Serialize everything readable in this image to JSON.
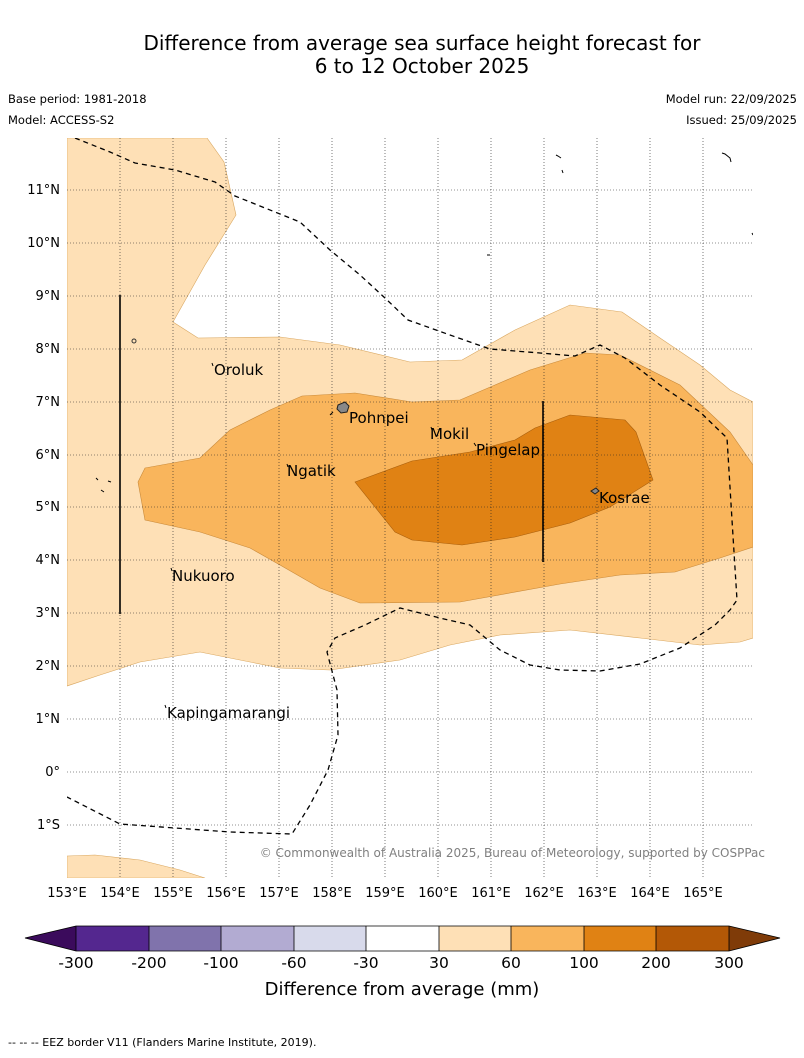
{
  "title": {
    "line1": "Difference from average sea surface height forecast for",
    "line2": "6 to 12 October 2025"
  },
  "meta": {
    "base_period": "Base period: 1981-2018",
    "model": "Model: ACCESS-S2",
    "model_run": "Model run: 22/09/2025",
    "issued": "Issued: 25/09/2025"
  },
  "axes": {
    "lon_labels": [
      "153°E",
      "154°E",
      "155°E",
      "156°E",
      "157°E",
      "158°E",
      "159°E",
      "160°E",
      "161°E",
      "162°E",
      "163°E",
      "164°E",
      "165°E"
    ],
    "lat_labels": [
      "11°N",
      "10°N",
      "9°N",
      "8°N",
      "7°N",
      "6°N",
      "5°N",
      "4°N",
      "3°N",
      "2°N",
      "1°N",
      "0°",
      "1°S"
    ]
  },
  "places": [
    {
      "name": "Oroluk"
    },
    {
      "name": "Pohnpei"
    },
    {
      "name": "Mokil"
    },
    {
      "name": "Pingelap"
    },
    {
      "name": "Ngatik"
    },
    {
      "name": "Kosrae"
    },
    {
      "name": "Nukuoro"
    },
    {
      "name": "Kapingamarangi"
    }
  ],
  "credit": "© Commonwealth of Australia 2025, Bureau of Meteorology, supported by COSPPac",
  "colorbar": {
    "title": "Difference from average (mm)",
    "labels": [
      "-300",
      "-200",
      "-100",
      "-60",
      "-30",
      "30",
      "60",
      "100",
      "200",
      "300"
    ],
    "colors": {
      "below": "#3b0b5c",
      "c1": "#54278f",
      "c2": "#8073ac",
      "c3": "#b2abd2",
      "c4": "#d8daeb",
      "c5": "#ffffff",
      "c6": "#fee0b6",
      "c7": "#f9b55c",
      "c8": "#e08214",
      "c9": "#b35806",
      "above": "#7f3b08"
    }
  },
  "footnote": "-- -- -- EEZ border V11 (Flanders Marine Institute, 2019)."
}
